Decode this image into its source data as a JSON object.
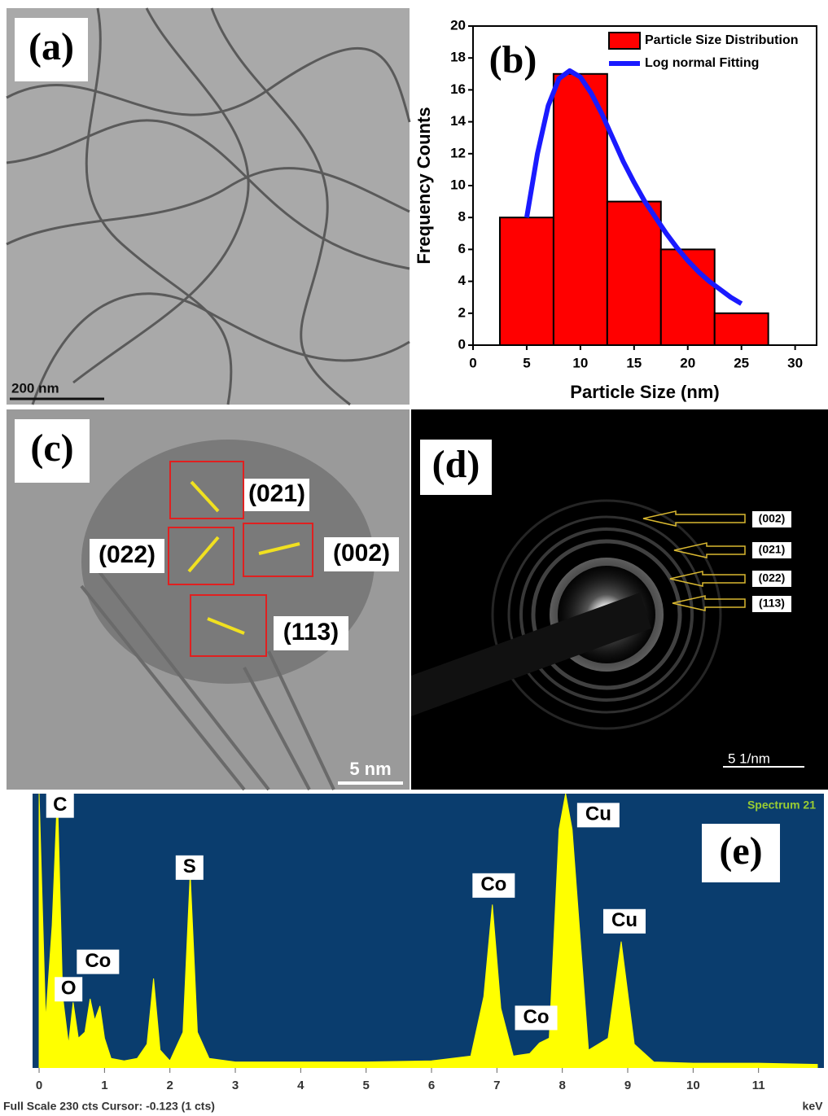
{
  "panels": {
    "a": {
      "label": "(a)",
      "scale_bar": "200 nm"
    },
    "c": {
      "label": "(c)",
      "planes": [
        "(021)",
        "(022)",
        "(002)",
        "(113)"
      ],
      "scale_bar": "5 nm"
    },
    "d": {
      "label": "(d)",
      "rings": [
        "(002)",
        "(021)",
        "(022)",
        "(113)"
      ],
      "scale_bar": "5 1/nm"
    }
  },
  "chart_data": [
    {
      "type": "histogram",
      "label": "(b)",
      "xlabel": "Particle Size (nm)",
      "ylabel": "Frequency Counts",
      "bins": [
        2.5,
        7.5,
        12.5,
        17.5,
        22.5,
        27.5
      ],
      "series": [
        {
          "name": "Particle Size Distribution",
          "color": "#ff0000",
          "values": [
            8,
            17,
            9,
            6,
            2
          ]
        },
        {
          "name": "Log normal Fitting",
          "type": "line",
          "color": "#1a1aff",
          "x": [
            5,
            6,
            7,
            8,
            9,
            10,
            11,
            12,
            13,
            14,
            15,
            16,
            17,
            18,
            19,
            20,
            21,
            22,
            23,
            24,
            25
          ],
          "values": [
            8,
            12,
            15,
            16.7,
            17.2,
            16.8,
            15.8,
            14.5,
            13,
            11.5,
            10.2,
            9,
            8,
            7,
            6.1,
            5.3,
            4.6,
            4,
            3.5,
            3,
            2.6
          ]
        }
      ],
      "xlim": [
        0,
        32
      ],
      "ylim": [
        0,
        20
      ],
      "xticks": [
        0,
        5,
        10,
        15,
        20,
        25,
        30
      ],
      "yticks": [
        0,
        2,
        4,
        6,
        8,
        10,
        12,
        14,
        16,
        18,
        20
      ],
      "legend": "upper right"
    },
    {
      "type": "area",
      "label": "(e)",
      "title": "Spectrum 21",
      "xlabel": "keV",
      "footer": "Full Scale 230 cts Cursor: -0.123  (1 cts)",
      "x": [
        0,
        0.1,
        0.2,
        0.28,
        0.36,
        0.45,
        0.52,
        0.6,
        0.7,
        0.78,
        0.85,
        0.93,
        1.0,
        1.1,
        1.3,
        1.5,
        1.65,
        1.75,
        1.85,
        2.0,
        2.2,
        2.31,
        2.42,
        2.6,
        3,
        4,
        5,
        6,
        6.6,
        6.8,
        6.93,
        7.06,
        7.25,
        7.5,
        7.65,
        7.8,
        7.95,
        8.05,
        8.15,
        8.4,
        8.7,
        8.9,
        9.1,
        9.4,
        10,
        11,
        11.9
      ],
      "series": [
        {
          "color": "#ffff00",
          "values": [
            230,
            40,
            120,
            230,
            60,
            20,
            55,
            25,
            30,
            58,
            40,
            52,
            25,
            8,
            6,
            8,
            20,
            75,
            15,
            6,
            30,
            163,
            30,
            8,
            5,
            5,
            5,
            6,
            10,
            60,
            137,
            50,
            10,
            12,
            21,
            25,
            200,
            230,
            200,
            15,
            25,
            106,
            20,
            5,
            4,
            4,
            3
          ]
        }
      ],
      "xlim": [
        -0.1,
        12
      ],
      "ylim": [
        0,
        230
      ],
      "xticks": [
        0,
        1,
        2,
        3,
        4,
        5,
        6,
        7,
        8,
        9,
        10,
        11
      ],
      "background": "#0a3d6e",
      "annotations": [
        {
          "text": "C",
          "x": 0.32,
          "y": 220
        },
        {
          "text": "O",
          "x": 0.45,
          "y": 66
        },
        {
          "text": "Co",
          "x": 0.9,
          "y": 89
        },
        {
          "text": "S",
          "x": 2.3,
          "y": 168
        },
        {
          "text": "Co",
          "x": 6.95,
          "y": 153
        },
        {
          "text": "Co",
          "x": 7.6,
          "y": 42
        },
        {
          "text": "Cu",
          "x": 8.55,
          "y": 212
        },
        {
          "text": "Cu",
          "x": 8.95,
          "y": 123
        }
      ]
    }
  ]
}
